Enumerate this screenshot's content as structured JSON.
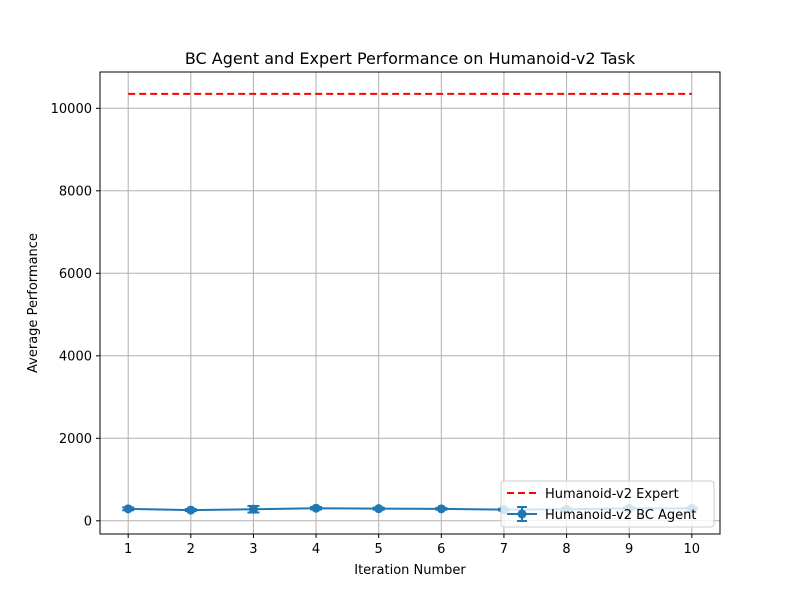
{
  "chart_data": {
    "type": "line",
    "title": "BC Agent and Expert Performance on Humanoid-v2 Task",
    "xlabel": "Iteration Number",
    "ylabel": "Average Performance",
    "x": [
      1,
      2,
      3,
      4,
      5,
      6,
      7,
      8,
      9,
      10
    ],
    "xticks": [
      "1",
      "2",
      "3",
      "4",
      "5",
      "6",
      "7",
      "8",
      "9",
      "10"
    ],
    "yticks": [
      0,
      2000,
      4000,
      6000,
      8000,
      10000
    ],
    "ytick_labels": [
      "0",
      "2000",
      "4000",
      "6000",
      "8000",
      "10000"
    ],
    "xlim": [
      0.55,
      10.45
    ],
    "ylim": [
      -320,
      10880
    ],
    "grid": true,
    "legend_position": "lower-right",
    "series": [
      {
        "name": "Humanoid-v2 Expert",
        "style": "dashed",
        "color": "#ff0000",
        "values": [
          10350,
          10350,
          10350,
          10350,
          10350,
          10350,
          10350,
          10350,
          10350,
          10350
        ]
      },
      {
        "name": "Humanoid-v2 BC Agent",
        "style": "solid-marker-errorbar",
        "color": "#1f77b4",
        "values": [
          290,
          260,
          280,
          305,
          295,
          290,
          270,
          280,
          300,
          300
        ],
        "errors": [
          35,
          25,
          80,
          30,
          25,
          20,
          20,
          25,
          25,
          20
        ]
      }
    ]
  }
}
